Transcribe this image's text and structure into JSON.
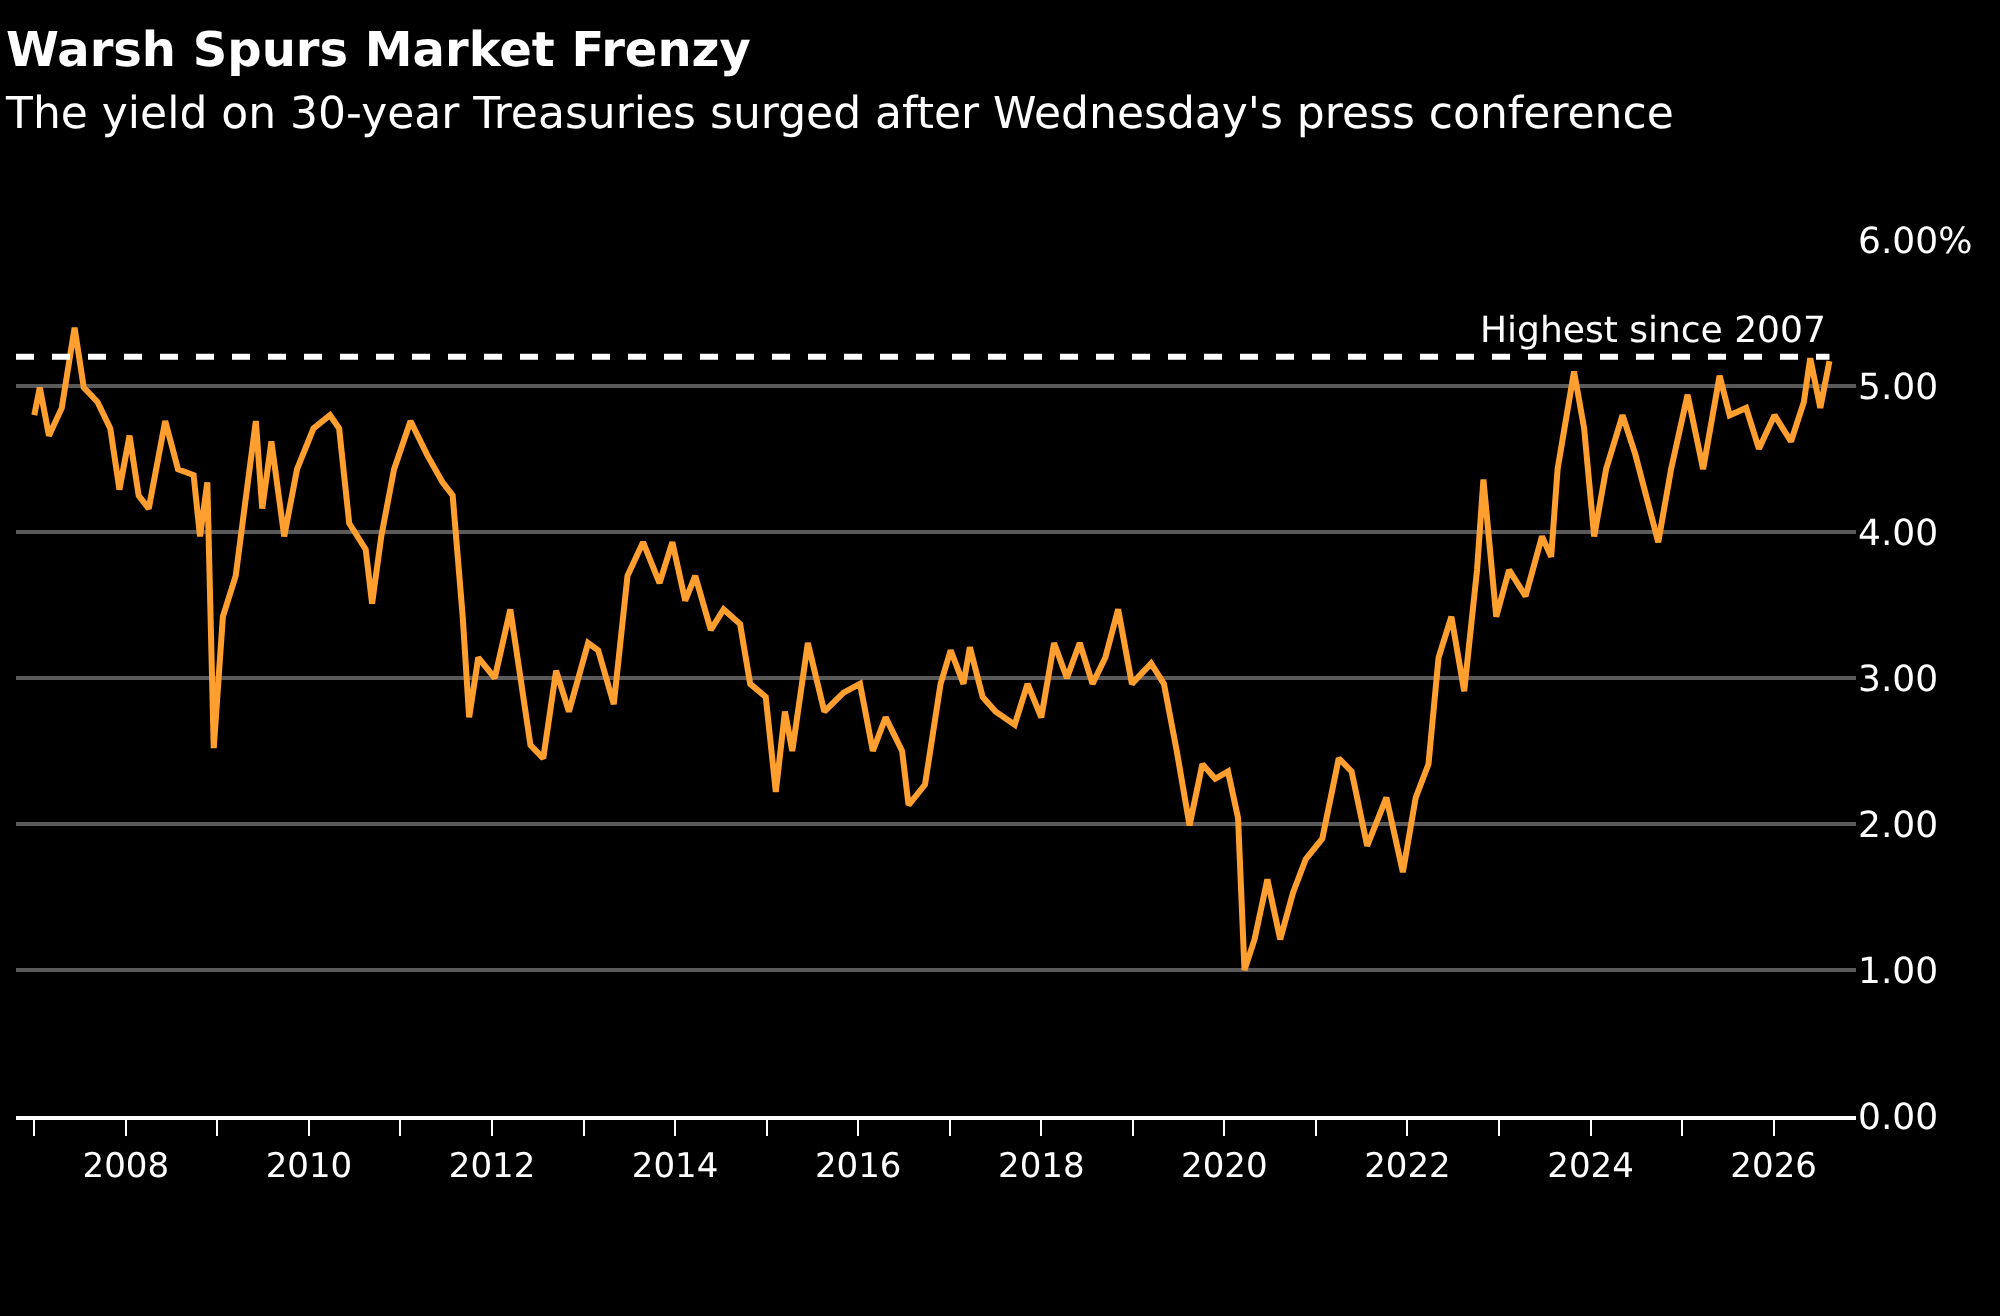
{
  "chart_data": {
    "type": "line",
    "title": "Warsh Spurs Market Frenzy",
    "subtitle": "The yield on 30-year Treasuries surged after Wednesday's press conference",
    "x": [
      2007.0,
      2007.06,
      2007.16,
      2007.3,
      2007.44,
      2007.54,
      2007.69,
      2007.83,
      2007.93,
      2008.04,
      2008.14,
      2008.25,
      2008.43,
      2008.57,
      2008.74,
      2008.81,
      2008.89,
      2008.96,
      2009.06,
      2009.2,
      2009.42,
      2009.49,
      2009.59,
      2009.73,
      2009.87,
      2010.05,
      2010.23,
      2010.33,
      2010.44,
      2010.62,
      2010.69,
      2010.79,
      2010.93,
      2011.11,
      2011.29,
      2011.46,
      2011.57,
      2011.68,
      2011.75,
      2011.85,
      2012.03,
      2012.2,
      2012.42,
      2012.56,
      2012.7,
      2012.84,
      2013.05,
      2013.16,
      2013.33,
      2013.48,
      2013.65,
      2013.83,
      2013.97,
      2014.11,
      2014.22,
      2014.39,
      2014.53,
      2014.71,
      2014.82,
      2014.99,
      2015.1,
      2015.2,
      2015.28,
      2015.45,
      2015.63,
      2015.84,
      2016.02,
      2016.16,
      2016.3,
      2016.48,
      2016.55,
      2016.73,
      2016.9,
      2017.01,
      2017.15,
      2017.22,
      2017.36,
      2017.5,
      2017.71,
      2017.85,
      2018.0,
      2018.14,
      2018.28,
      2018.42,
      2018.56,
      2018.7,
      2018.84,
      2018.99,
      2019.2,
      2019.34,
      2019.48,
      2019.62,
      2019.76,
      2019.9,
      2020.04,
      2020.15,
      2020.22,
      2020.33,
      2020.47,
      2020.61,
      2020.75,
      2020.89,
      2021.07,
      2021.25,
      2021.39,
      2021.56,
      2021.77,
      2021.95,
      2022.09,
      2022.23,
      2022.34,
      2022.48,
      2022.62,
      2022.76,
      2022.83,
      2022.97,
      2023.11,
      2023.29,
      2023.47,
      2023.57,
      2023.64,
      2023.82,
      2023.93,
      2024.04,
      2024.17,
      2024.35,
      2024.49,
      2024.74,
      2024.88,
      2025.06,
      2025.23,
      2025.41,
      2025.52,
      2025.7,
      2025.84,
      2026.01,
      2026.19,
      2026.33,
      2026.4,
      2026.51,
      2026.61
    ],
    "series": [
      {
        "color": "#ff9f2f",
        "values": [
          4.8,
          4.99,
          4.66,
          4.85,
          5.4,
          4.99,
          4.89,
          4.71,
          4.29,
          4.66,
          4.25,
          4.16,
          4.76,
          4.43,
          4.39,
          3.97,
          4.34,
          2.52,
          3.42,
          3.7,
          4.76,
          4.16,
          4.62,
          3.97,
          4.43,
          4.71,
          4.8,
          4.71,
          4.06,
          3.88,
          3.51,
          3.97,
          4.43,
          4.76,
          4.53,
          4.34,
          4.25,
          3.42,
          2.73,
          3.14,
          3.0,
          3.47,
          2.54,
          2.45,
          3.05,
          2.77,
          3.24,
          3.19,
          2.82,
          3.7,
          3.93,
          3.65,
          3.93,
          3.53,
          3.7,
          3.33,
          3.47,
          3.37,
          2.96,
          2.87,
          2.22,
          2.77,
          2.5,
          3.24,
          2.77,
          2.9,
          2.96,
          2.5,
          2.73,
          2.5,
          2.13,
          2.27,
          2.96,
          3.19,
          2.96,
          3.21,
          2.87,
          2.77,
          2.68,
          2.96,
          2.73,
          3.24,
          3.0,
          3.24,
          2.96,
          3.14,
          3.47,
          2.96,
          3.1,
          2.96,
          2.5,
          1.99,
          2.41,
          2.31,
          2.36,
          2.04,
          1.0,
          1.21,
          1.62,
          1.21,
          1.53,
          1.76,
          1.9,
          2.45,
          2.36,
          1.85,
          2.18,
          1.67,
          2.18,
          2.41,
          3.14,
          3.42,
          2.91,
          3.74,
          4.36,
          3.42,
          3.74,
          3.56,
          3.97,
          3.83,
          4.43,
          5.1,
          4.71,
          3.97,
          4.43,
          4.8,
          4.53,
          3.93,
          4.43,
          4.94,
          4.43,
          5.07,
          4.8,
          4.85,
          4.57,
          4.8,
          4.62,
          4.89,
          5.19,
          4.85,
          5.17
        ]
      }
    ],
    "xlim": [
      2006.8,
      2026.9
    ],
    "xticks": [
      {
        "value": 2007,
        "label": null
      },
      2008,
      {
        "value": 2009,
        "label": null
      },
      2010,
      {
        "value": 2011,
        "label": null
      },
      2012,
      {
        "value": 2013,
        "label": null
      },
      2014,
      {
        "value": 2015,
        "label": null
      },
      2016,
      {
        "value": 2017,
        "label": null
      },
      2018,
      {
        "value": 2019,
        "label": null
      },
      2020,
      {
        "value": 2021,
        "label": null
      },
      2022,
      {
        "value": 2023,
        "label": null
      },
      2024,
      {
        "value": 2025,
        "label": null
      },
      2026
    ],
    "ylim": [
      0,
      6
    ],
    "yticks": [
      {
        "value": 0,
        "label": "0.00"
      },
      {
        "value": 1,
        "label": "1.00"
      },
      {
        "value": 2,
        "label": "2.00"
      },
      {
        "value": 3,
        "label": "3.00"
      },
      {
        "value": 4,
        "label": "4.00"
      },
      {
        "value": 5,
        "label": "5.00"
      },
      {
        "value": 6,
        "label": "6.00%"
      }
    ],
    "ref_lines": [
      {
        "axis": "y",
        "value": 5.2,
        "label": "Highest since 2007",
        "color": "#ffffff",
        "line_style": "dashed"
      }
    ],
    "grid": "y",
    "marker": "none",
    "line_style": "solid"
  }
}
